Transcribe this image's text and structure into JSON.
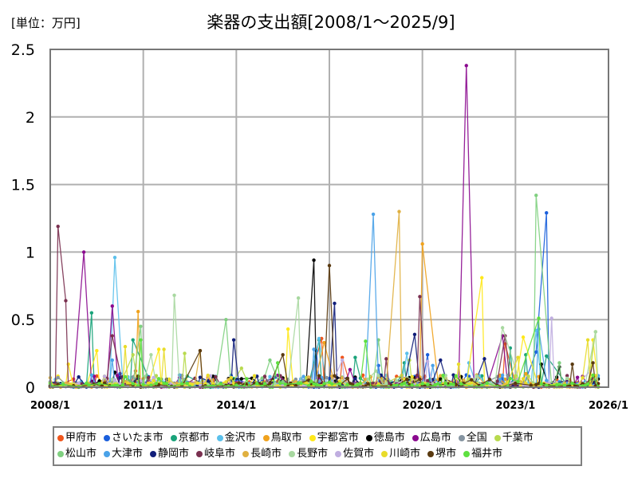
{
  "header": {
    "unit_label": "[単位：万円]",
    "title": "楽器の支出額[2008/1～2025/9]"
  },
  "chart_data": {
    "type": "line",
    "title": "楽器の支出額[2008/1～2025/9]",
    "ylabel": "[単位：万円]",
    "xlabel": "",
    "ylim": [
      0,
      2.5
    ],
    "yticks": [
      "0",
      "0.5",
      "1",
      "1.5",
      "2",
      "2.5"
    ],
    "ytick_values": [
      0,
      0.5,
      1,
      1.5,
      2,
      2.5
    ],
    "xlim": [
      "2008/1",
      "2026/1"
    ],
    "xticks": [
      "2008/1",
      "2011/1",
      "2014/1",
      "2017/1",
      "2020/1",
      "2023/1",
      "2026/1"
    ],
    "grid": true,
    "legend_position": "bottom",
    "x_range_months": 216,
    "series": [
      {
        "name": "甲府市",
        "color": "#f0561d",
        "peaks": [
          [
            "2008/10",
            0.06
          ],
          [
            "2010/10",
            0.12
          ],
          [
            "2016/10",
            0.36
          ],
          [
            "2017/6",
            0.22
          ],
          [
            "2019/3",
            0.08
          ],
          [
            "2022/9",
            0.32
          ],
          [
            "2025/8",
            0.05
          ]
        ]
      },
      {
        "name": "さいたま市",
        "color": "#1a5fdc",
        "peaks": [
          [
            "2010/4",
            0.1
          ],
          [
            "2016/8",
            0.27
          ],
          [
            "2018/8",
            0.16
          ],
          [
            "2020/3",
            0.24
          ],
          [
            "2021/6",
            0.09
          ],
          [
            "2024/1",
            1.29
          ],
          [
            "2023/9",
            0.26
          ]
        ]
      },
      {
        "name": "京都市",
        "color": "#1aa37a",
        "peaks": [
          [
            "2009/5",
            0.55
          ],
          [
            "2010/9",
            0.35
          ],
          [
            "2016/9",
            0.35
          ],
          [
            "2017/11",
            0.22
          ],
          [
            "2019/6",
            0.18
          ],
          [
            "2022/11",
            0.29
          ],
          [
            "2023/5",
            0.24
          ],
          [
            "2024/1",
            0.23
          ]
        ]
      },
      {
        "name": "金沢市",
        "color": "#5bc0eb",
        "peaks": [
          [
            "2010/2",
            0.96
          ],
          [
            "2013/5",
            0.08
          ],
          [
            "2016/9",
            0.36
          ],
          [
            "2019/7",
            0.25
          ],
          [
            "2021/7",
            0.18
          ],
          [
            "2023/9",
            0.42
          ]
        ]
      },
      {
        "name": "鳥取市",
        "color": "#f0a21d",
        "peaks": [
          [
            "2010/11",
            0.56
          ],
          [
            "2016/11",
            0.33
          ],
          [
            "2020/1",
            1.06
          ],
          [
            "2023/5",
            0.1
          ]
        ]
      },
      {
        "name": "宇都宮市",
        "color": "#ffe81a",
        "peaks": [
          [
            "2008/8",
            0.17
          ],
          [
            "2009/7",
            0.27
          ],
          [
            "2011/7",
            0.28
          ],
          [
            "2015/9",
            0.43
          ],
          [
            "2021/12",
            0.81
          ],
          [
            "2023/4",
            0.37
          ],
          [
            "2025/7",
            0.35
          ]
        ]
      },
      {
        "name": "徳島市",
        "color": "#000000",
        "peaks": [
          [
            "2010/2",
            0.11
          ],
          [
            "2013/11",
            0.06
          ],
          [
            "2016/7",
            0.94
          ],
          [
            "2023/11",
            0.17
          ],
          [
            "2024/6",
            0.15
          ]
        ]
      },
      {
        "name": "広島市",
        "color": "#8b0a8f",
        "peaks": [
          [
            "2009/2",
            1.0
          ],
          [
            "2010/1",
            0.6
          ],
          [
            "2017/9",
            0.13
          ],
          [
            "2021/6",
            2.38
          ],
          [
            "2022/8",
            0.38
          ],
          [
            "2025/3",
            0.08
          ]
        ]
      },
      {
        "name": "全国",
        "color": "#8594a1",
        "peaks": [
          [
            "2008/1",
            0.04
          ],
          [
            "2012/1",
            0.03
          ],
          [
            "2016/1",
            0.03
          ],
          [
            "2020/1",
            0.03
          ],
          [
            "2024/1",
            0.03
          ]
        ]
      },
      {
        "name": "千葉市",
        "color": "#b8da4e",
        "peaks": [
          [
            "2010/9",
            0.24
          ],
          [
            "2012/5",
            0.25
          ],
          [
            "2014/3",
            0.14
          ],
          [
            "2019/8",
            0.2
          ],
          [
            "2025/8",
            0.41
          ]
        ]
      },
      {
        "name": "松山市",
        "color": "#80d080",
        "peaks": [
          [
            "2010/12",
            0.45
          ],
          [
            "2013/9",
            0.5
          ],
          [
            "2015/2",
            0.2
          ],
          [
            "2018/8",
            0.35
          ],
          [
            "2023/9",
            1.42
          ],
          [
            "2024/6",
            0.18
          ]
        ]
      },
      {
        "name": "大津市",
        "color": "#4aa2e8",
        "peaks": [
          [
            "2010/1",
            0.2
          ],
          [
            "2012/3",
            0.09
          ],
          [
            "2016/7",
            0.28
          ],
          [
            "2018/6",
            1.28
          ],
          [
            "2020/5",
            0.16
          ],
          [
            "2023/10",
            0.43
          ]
        ]
      },
      {
        "name": "静岡市",
        "color": "#111e7a",
        "peaks": [
          [
            "2010/4",
            0.07
          ],
          [
            "2013/12",
            0.35
          ],
          [
            "2017/3",
            0.62
          ],
          [
            "2019/10",
            0.39
          ],
          [
            "2020/8",
            0.2
          ],
          [
            "2021/1",
            0.09
          ],
          [
            "2022/1",
            0.21
          ]
        ]
      },
      {
        "name": "岐阜市",
        "color": "#7a3050",
        "peaks": [
          [
            "2008/4",
            1.19
          ],
          [
            "2008/7",
            0.64
          ],
          [
            "2010/1",
            0.38
          ],
          [
            "2018/11",
            0.21
          ],
          [
            "2019/12",
            0.67
          ],
          [
            "2022/9",
            0.38
          ]
        ]
      },
      {
        "name": "長崎市",
        "color": "#e0b040",
        "peaks": [
          [
            "2008/1",
            0.07
          ],
          [
            "2012/11",
            0.27
          ],
          [
            "2019/4",
            1.3
          ],
          [
            "2021/10",
            0.09
          ]
        ]
      },
      {
        "name": "長野市",
        "color": "#a8d8a0",
        "peaks": [
          [
            "2011/4",
            0.24
          ],
          [
            "2012/1",
            0.68
          ],
          [
            "2016/1",
            0.66
          ],
          [
            "2018/7",
            0.12
          ],
          [
            "2022/8",
            0.44
          ],
          [
            "2025/8",
            0.41
          ]
        ]
      },
      {
        "name": "佐賀市",
        "color": "#c0aee0",
        "peaks": [
          [
            "2009/10",
            0.08
          ],
          [
            "2017/6",
            0.2
          ],
          [
            "2020/3",
            0.19
          ],
          [
            "2024/3",
            0.51
          ],
          [
            "2025/6",
            0.12
          ]
        ]
      },
      {
        "name": "川崎市",
        "color": "#e8dc2a",
        "peaks": [
          [
            "2010/6",
            0.3
          ],
          [
            "2011/9",
            0.28
          ],
          [
            "2021/3",
            0.17
          ],
          [
            "2023/2",
            0.22
          ],
          [
            "2025/5",
            0.35
          ]
        ]
      },
      {
        "name": "堺市",
        "color": "#5a3a10",
        "peaks": [
          [
            "2012/11",
            0.27
          ],
          [
            "2015/7",
            0.24
          ],
          [
            "2017/1",
            0.9
          ],
          [
            "2024/11",
            0.17
          ],
          [
            "2025/7",
            0.18
          ]
        ]
      },
      {
        "name": "福井市",
        "color": "#5ee040",
        "peaks": [
          [
            "2010/12",
            0.35
          ],
          [
            "2015/5",
            0.18
          ],
          [
            "2018/3",
            0.34
          ],
          [
            "2023/10",
            0.51
          ]
        ]
      }
    ]
  },
  "legend": {
    "rows": [
      [
        "甲府市",
        "さいたま市",
        "京都市",
        "金沢市",
        "鳥取市",
        "宇都宮市",
        "徳島市",
        "広島市",
        "全国",
        "千葉市"
      ],
      [
        "松山市",
        "大津市",
        "静岡市",
        "岐阜市",
        "長崎市",
        "長野市",
        "佐賀市",
        "川崎市",
        "堺市",
        "福井市"
      ]
    ]
  }
}
